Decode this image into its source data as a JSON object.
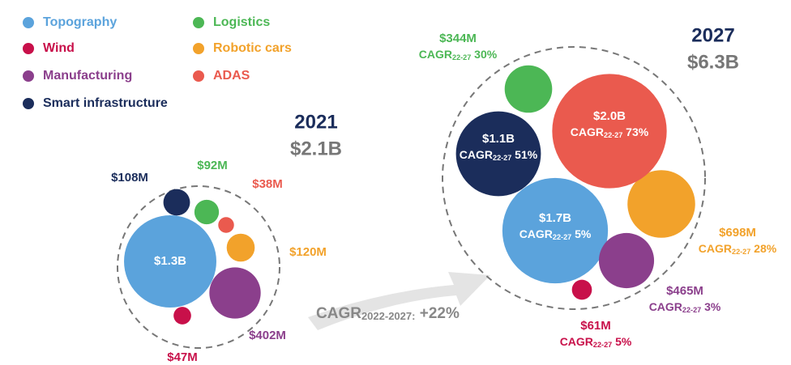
{
  "chart_data": {
    "type": "bubble",
    "series": [
      {
        "name": "Topography",
        "color": "#5ba3dc"
      },
      {
        "name": "Wind",
        "color": "#c8104a"
      },
      {
        "name": "Manufacturing",
        "color": "#8b3f8c"
      },
      {
        "name": "Smart infrastructure",
        "color": "#1b2d5b"
      },
      {
        "name": "Logistics",
        "color": "#4cb755"
      },
      {
        "name": "Robotic cars",
        "color": "#f2a22b"
      },
      {
        "name": "ADAS",
        "color": "#ea5a4e"
      }
    ],
    "groups": [
      {
        "year": "2021",
        "total": 2100,
        "total_label": "$2.1B",
        "values": [
          1300,
          47,
          402,
          108,
          92,
          120,
          38
        ],
        "value_labels": [
          "$1.3B",
          "$47M",
          "$402M",
          "$108M",
          "$92M",
          "$120M",
          "$38M"
        ]
      },
      {
        "year": "2027",
        "total": 6300,
        "total_label": "$6.3B",
        "values": [
          1700,
          61,
          465,
          1100,
          344,
          698,
          2000
        ],
        "value_labels": [
          "$1.7B",
          "$61M",
          "$465M",
          "$1.1B",
          "$344M",
          "$698M",
          "$2.0B"
        ],
        "cagr_values": [
          5,
          5,
          3,
          51,
          30,
          28,
          73
        ],
        "cagr_labels": [
          "5%",
          "5%",
          "3%",
          "51%",
          "30%",
          "28%",
          "73%"
        ]
      }
    ],
    "cagr_prefix": "CAGR",
    "cagr_sub": "22-27",
    "overall_cagr": {
      "sub": "2022-2027:",
      "value": 22,
      "label": "+22%"
    }
  }
}
